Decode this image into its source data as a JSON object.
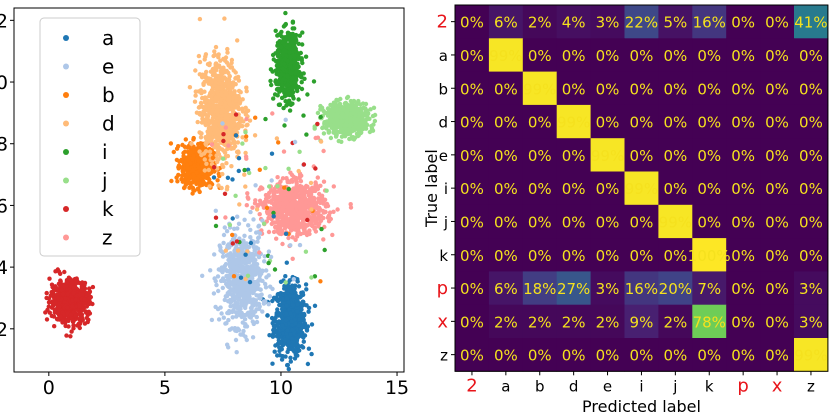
{
  "chart_data": [
    {
      "type": "scatter",
      "title": "",
      "xlabel": "",
      "ylabel": "",
      "xlim": [
        -1.5,
        15.3
      ],
      "ylim": [
        0.6,
        12.4
      ],
      "xticks": [
        0,
        5,
        10,
        15
      ],
      "yticks": [
        2,
        4,
        6,
        8,
        10,
        12
      ],
      "legend_position": "top-left",
      "series": [
        {
          "name": "a",
          "color": "#1f77b4",
          "center": [
            10.4,
            2.3
          ],
          "spread": [
            0.45,
            0.75
          ],
          "count": 700
        },
        {
          "name": "e",
          "color": "#aec7e8",
          "center": [
            8.3,
            3.6
          ],
          "spread": [
            0.6,
            1.0
          ],
          "count": 650
        },
        {
          "name": "b",
          "color": "#ff7f0e",
          "center": [
            6.4,
            7.3
          ],
          "spread": [
            0.45,
            0.45
          ],
          "count": 550
        },
        {
          "name": "d",
          "color": "#ffbb78",
          "center": [
            7.4,
            9.1
          ],
          "spread": [
            0.6,
            1.1
          ],
          "count": 800
        },
        {
          "name": "i",
          "color": "#2ca02c",
          "center": [
            10.3,
            10.5
          ],
          "spread": [
            0.35,
            0.7
          ],
          "count": 600
        },
        {
          "name": "j",
          "color": "#98df8a",
          "center": [
            12.8,
            8.8
          ],
          "spread": [
            0.65,
            0.35
          ],
          "count": 550
        },
        {
          "name": "k",
          "color": "#d62728",
          "center": [
            0.9,
            2.9
          ],
          "spread": [
            0.55,
            0.45
          ],
          "count": 600
        },
        {
          "name": "z",
          "color": "#ff9896",
          "center": [
            10.6,
            5.9
          ],
          "spread": [
            0.9,
            0.55
          ],
          "count": 750
        }
      ],
      "tick_labels_x": [
        "0",
        "5",
        "10",
        "15"
      ],
      "tick_labels_y": [
        "2",
        "4",
        "6",
        "8",
        "10",
        "12"
      ]
    },
    {
      "type": "heatmap",
      "title": "",
      "xlabel": "Predicted label",
      "ylabel": "True label",
      "row_labels": [
        "2",
        "a",
        "b",
        "d",
        "e",
        "i",
        "j",
        "k",
        "p",
        "x",
        "z"
      ],
      "col_labels": [
        "2",
        "a",
        "b",
        "d",
        "e",
        "i",
        "j",
        "k",
        "p",
        "x",
        "z"
      ],
      "red_labels": [
        "2",
        "p",
        "x"
      ],
      "values": [
        [
          0,
          6,
          2,
          4,
          3,
          22,
          5,
          16,
          0,
          0,
          41
        ],
        [
          0,
          99,
          0,
          0,
          0,
          0,
          0,
          0,
          0,
          0,
          0
        ],
        [
          0,
          0,
          99,
          0,
          0,
          0,
          0,
          0,
          0,
          0,
          0
        ],
        [
          0,
          0,
          0,
          99,
          0,
          0,
          0,
          0,
          0,
          0,
          0
        ],
        [
          0,
          0,
          0,
          0,
          99,
          0,
          0,
          0,
          0,
          0,
          0
        ],
        [
          0,
          0,
          0,
          0,
          0,
          99,
          0,
          0,
          0,
          0,
          0
        ],
        [
          0,
          0,
          0,
          0,
          0,
          0,
          99,
          0,
          0,
          0,
          0
        ],
        [
          0,
          0,
          0,
          0,
          0,
          0,
          0,
          100,
          0,
          0,
          0
        ],
        [
          0,
          6,
          18,
          27,
          3,
          16,
          20,
          7,
          0,
          0,
          3
        ],
        [
          0,
          2,
          2,
          2,
          2,
          9,
          2,
          78,
          0,
          0,
          3
        ],
        [
          0,
          0,
          0,
          0,
          0,
          0,
          0,
          0,
          0,
          0,
          99
        ]
      ],
      "value_format": "percent",
      "colormap": "viridis",
      "text_color": "#f5e11e",
      "label_color_normal": "#000000",
      "label_color_highlight": "#e8141a"
    }
  ]
}
